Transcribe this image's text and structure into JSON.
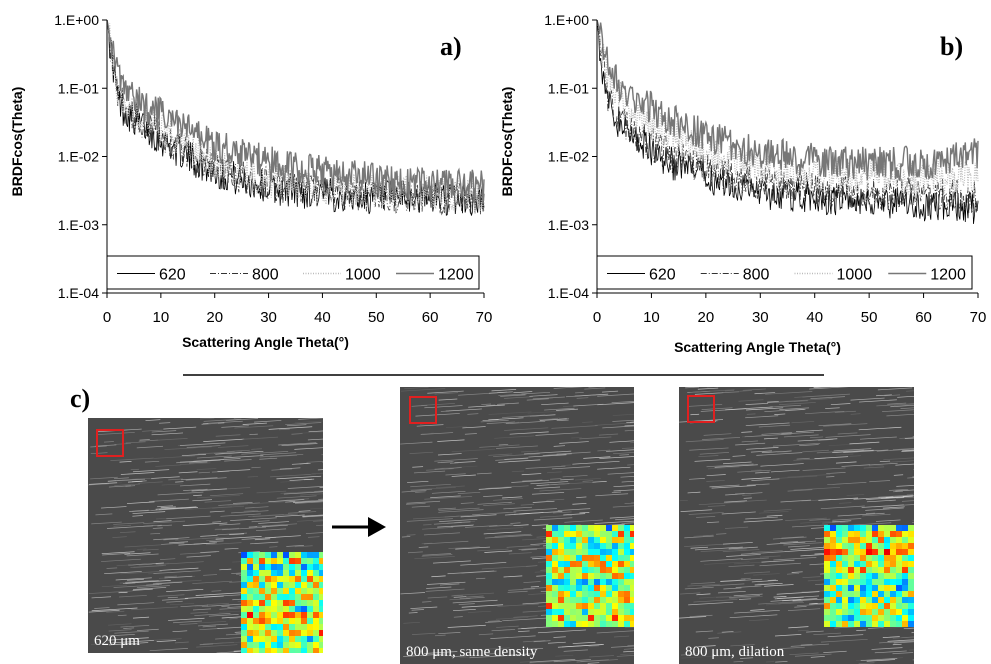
{
  "chart_data": [
    {
      "type": "line",
      "panel_label": "a)",
      "xlabel": "Scattering Angle Theta(°)",
      "ylabel": "BRDFcos(Theta)",
      "yscale": "log",
      "xlim": [
        0,
        70
      ],
      "ylim": [
        0.0001,
        1
      ],
      "x_ticks": [
        "0",
        "10",
        "20",
        "30",
        "40",
        "50",
        "60",
        "70"
      ],
      "y_ticks": [
        "1.E+00",
        "1.E-01",
        "1.E-02",
        "1.E-03",
        "1.E-04"
      ],
      "grid": false,
      "legend_position": "bottom",
      "series": [
        {
          "name": "620",
          "color": "#000000",
          "x": [
            0,
            1,
            2,
            3,
            5,
            10,
            15,
            20,
            25,
            30,
            40,
            50,
            60,
            70
          ],
          "y": [
            1.0,
            0.25,
            0.07,
            0.05,
            0.035,
            0.018,
            0.01,
            0.006,
            0.0045,
            0.0035,
            0.0028,
            0.0025,
            0.0025,
            0.0022
          ]
        },
        {
          "name": "800",
          "color": "#333333",
          "x": [
            0,
            1,
            2,
            3,
            5,
            10,
            15,
            20,
            25,
            30,
            40,
            50,
            60,
            70
          ],
          "y": [
            1.0,
            0.27,
            0.08,
            0.055,
            0.038,
            0.02,
            0.011,
            0.0065,
            0.005,
            0.004,
            0.003,
            0.0027,
            0.0026,
            0.0023
          ]
        },
        {
          "name": "1000",
          "color": "#bbbbbb",
          "x": [
            0,
            1,
            2,
            3,
            5,
            10,
            15,
            20,
            25,
            30,
            40,
            50,
            60,
            70
          ],
          "y": [
            1.0,
            0.3,
            0.1,
            0.065,
            0.045,
            0.025,
            0.014,
            0.008,
            0.006,
            0.0045,
            0.0035,
            0.003,
            0.003,
            0.0026
          ]
        },
        {
          "name": "1200",
          "color": "#777777",
          "x": [
            0,
            1,
            2,
            3,
            5,
            10,
            15,
            20,
            25,
            30,
            40,
            50,
            60,
            70
          ],
          "y": [
            1.0,
            0.4,
            0.15,
            0.09,
            0.07,
            0.04,
            0.025,
            0.015,
            0.011,
            0.008,
            0.006,
            0.0045,
            0.004,
            0.0035
          ]
        }
      ]
    },
    {
      "type": "line",
      "panel_label": "b)",
      "xlabel": "Scattering Angle Theta(°)",
      "ylabel": "BRDFcos(Theta)",
      "yscale": "log",
      "xlim": [
        0,
        70
      ],
      "ylim": [
        0.0001,
        1
      ],
      "x_ticks": [
        "0",
        "10",
        "20",
        "30",
        "40",
        "50",
        "60",
        "70"
      ],
      "y_ticks": [
        "1.E+00",
        "1.E-01",
        "1.E-02",
        "1.E-03",
        "1.E-04"
      ],
      "grid": false,
      "legend_position": "bottom",
      "series": [
        {
          "name": "620",
          "color": "#000000",
          "x": [
            0,
            1,
            2,
            3,
            5,
            10,
            15,
            20,
            25,
            30,
            40,
            50,
            60,
            70
          ],
          "y": [
            1.0,
            0.2,
            0.06,
            0.04,
            0.025,
            0.012,
            0.007,
            0.005,
            0.004,
            0.003,
            0.0025,
            0.0022,
            0.002,
            0.0018
          ]
        },
        {
          "name": "800",
          "color": "#333333",
          "x": [
            0,
            1,
            2,
            3,
            5,
            10,
            15,
            20,
            25,
            30,
            40,
            50,
            60,
            70
          ],
          "y": [
            1.0,
            0.25,
            0.08,
            0.05,
            0.032,
            0.015,
            0.009,
            0.0065,
            0.005,
            0.004,
            0.0033,
            0.003,
            0.0028,
            0.0026
          ]
        },
        {
          "name": "1000",
          "color": "#bbbbbb",
          "x": [
            0,
            1,
            2,
            3,
            5,
            10,
            15,
            20,
            25,
            30,
            40,
            50,
            60,
            70
          ],
          "y": [
            1.0,
            0.35,
            0.15,
            0.1,
            0.06,
            0.03,
            0.018,
            0.012,
            0.009,
            0.007,
            0.0055,
            0.005,
            0.0048,
            0.005
          ]
        },
        {
          "name": "1200",
          "color": "#777777",
          "x": [
            0,
            1,
            2,
            3,
            5,
            10,
            15,
            20,
            25,
            30,
            40,
            50,
            60,
            70
          ],
          "y": [
            1.0,
            0.5,
            0.25,
            0.15,
            0.1,
            0.05,
            0.03,
            0.02,
            0.015,
            0.011,
            0.009,
            0.008,
            0.008,
            0.012
          ]
        }
      ]
    }
  ],
  "section_c": {
    "label": "c)",
    "images": [
      {
        "caption": "620 μm"
      },
      {
        "caption": "800 μm, same density"
      },
      {
        "caption": "800 μm, dilation"
      }
    ],
    "arrow": "→",
    "highlight_color": "#e02020"
  }
}
